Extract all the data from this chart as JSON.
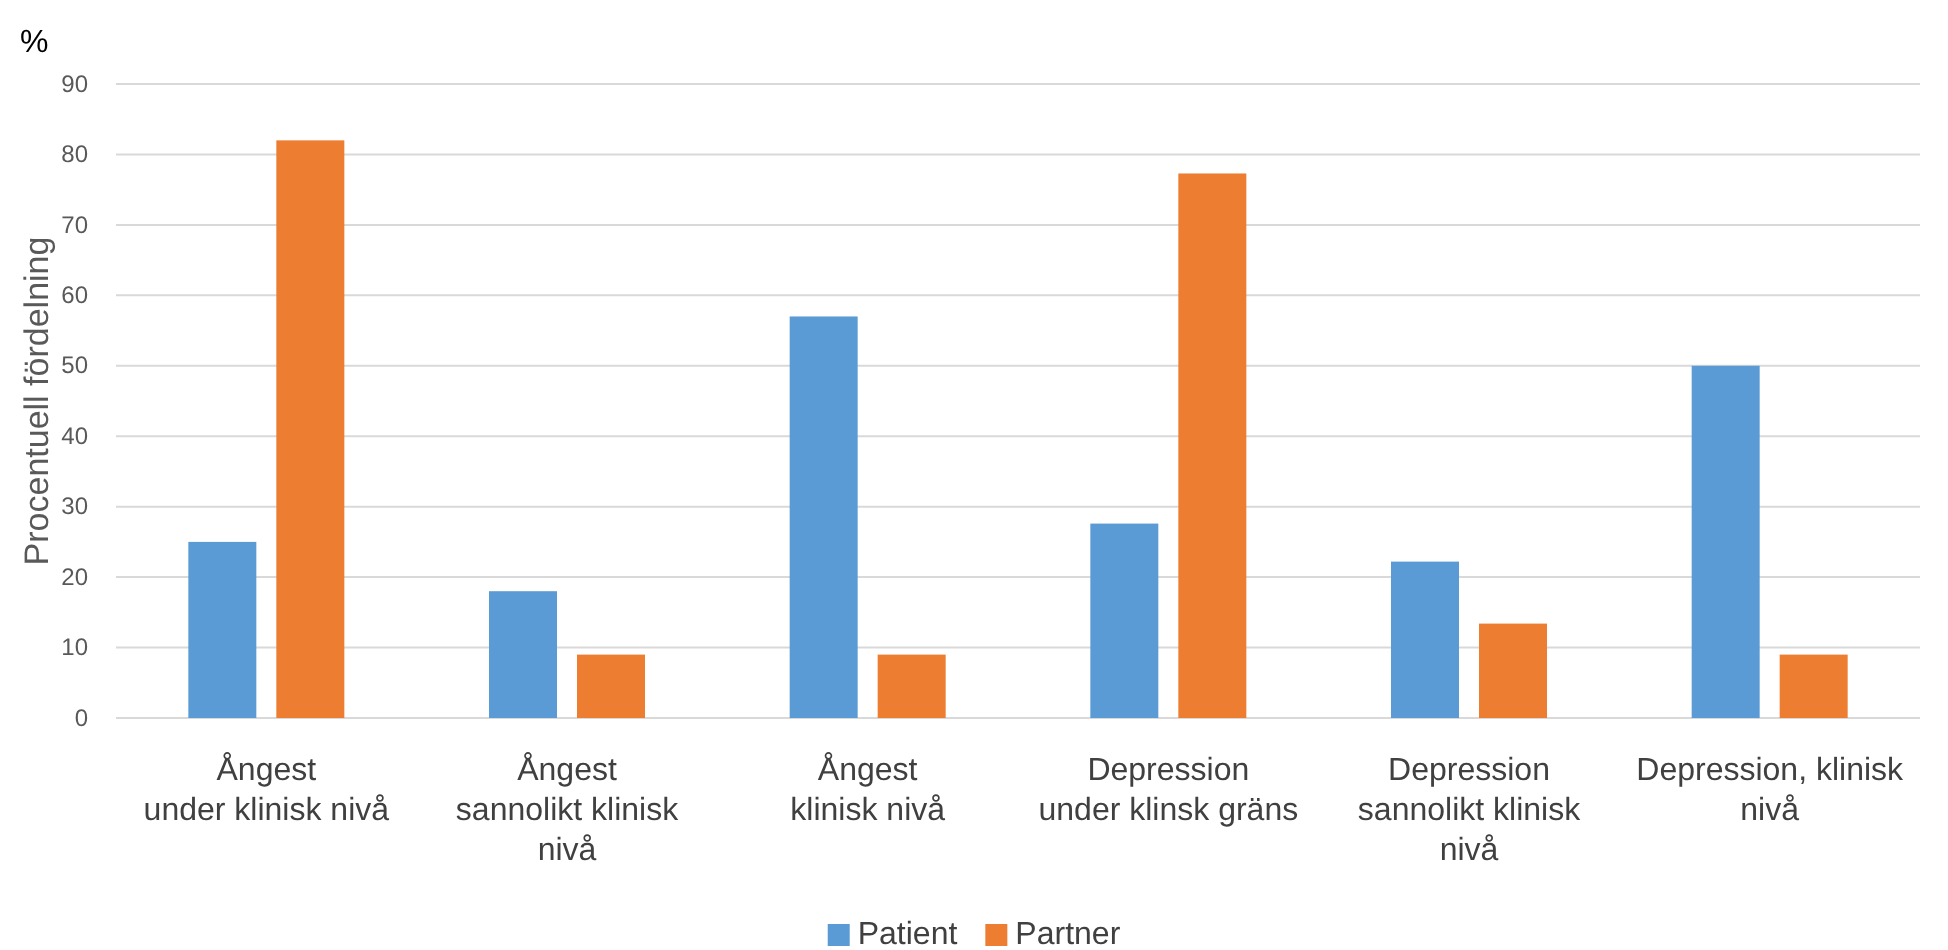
{
  "chart_data": {
    "type": "bar",
    "ylabel": "Procentuell fördelning",
    "annotations": [
      "%"
    ],
    "categories": [
      "Ångest\nunder klinisk nivå",
      "Ångest\nsannolikt klinisk\nnivå",
      "Ångest\nklinisk nivå",
      "Depression\nunder klinsk gräns",
      "Depression\nsannolikt klinisk\nnivå",
      "Depression, klinisk\nnivå"
    ],
    "series": [
      {
        "name": "Patient",
        "color": "#5b9bd5",
        "values": [
          25,
          18,
          57,
          27.6,
          22.2,
          50
        ]
      },
      {
        "name": "Partner",
        "color": "#ed7d31",
        "values": [
          82,
          9,
          9,
          77.3,
          13.4,
          9
        ]
      }
    ],
    "ylim": [
      0,
      90
    ],
    "yticks": [
      0,
      10,
      20,
      30,
      40,
      50,
      60,
      70,
      80,
      90
    ],
    "grid": "y",
    "legend": "bottom"
  }
}
